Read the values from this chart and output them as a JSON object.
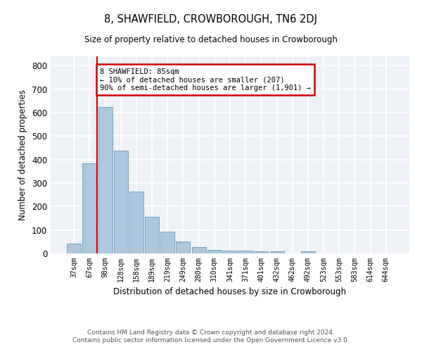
{
  "title": "8, SHAWFIELD, CROWBOROUGH, TN6 2DJ",
  "subtitle": "Size of property relative to detached houses in Crowborough",
  "xlabel": "Distribution of detached houses by size in Crowborough",
  "ylabel": "Number of detached properties",
  "categories": [
    "37sqm",
    "67sqm",
    "98sqm",
    "128sqm",
    "158sqm",
    "189sqm",
    "219sqm",
    "249sqm",
    "280sqm",
    "310sqm",
    "341sqm",
    "371sqm",
    "401sqm",
    "432sqm",
    "462sqm",
    "492sqm",
    "523sqm",
    "553sqm",
    "583sqm",
    "614sqm",
    "644sqm"
  ],
  "values": [
    43,
    385,
    625,
    438,
    265,
    155,
    94,
    52,
    27,
    16,
    12,
    12,
    10,
    10,
    0,
    8,
    0,
    0,
    0,
    0,
    0
  ],
  "bar_color": "#aec6de",
  "bar_edge_color": "#6a9cbf",
  "background_color": "#eef2f7",
  "grid_color": "#ffffff",
  "vline_color": "#cc0000",
  "annotation_text": "8 SHAWFIELD: 85sqm\n← 10% of detached houses are smaller (207)\n90% of semi-detached houses are larger (1,901) →",
  "annotation_box_color": "#ffffff",
  "annotation_box_edge": "#cc0000",
  "ylim": [
    0,
    840
  ],
  "yticks": [
    0,
    100,
    200,
    300,
    400,
    500,
    600,
    700,
    800
  ],
  "footer_line1": "Contains HM Land Registry data © Crown copyright and database right 2024.",
  "footer_line2": "Contains public sector information licensed under the Open Government Licence v3.0."
}
